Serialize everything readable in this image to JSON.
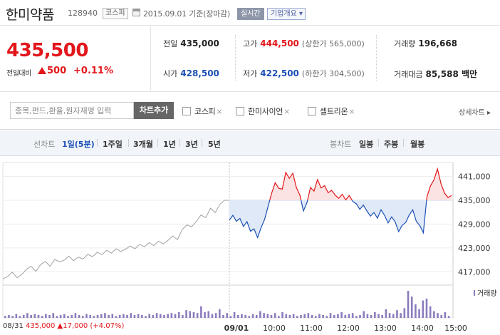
{
  "header": {
    "stock_name": "한미약품",
    "stock_code": "128940",
    "market": "코스피",
    "date": "2015.09.01 기준(장마감)",
    "realtime_label": "실시간",
    "company_label": "기업개요 ▾"
  },
  "price": {
    "current": "435,500",
    "change_label": "전일대비",
    "change": "500",
    "change_pct": "+0.11%"
  },
  "stats": {
    "prev_close": {
      "label": "전일",
      "value": "435,000"
    },
    "open": {
      "label": "시가",
      "value": "428,500"
    },
    "high": {
      "label": "고가",
      "value": "444,500",
      "sub": "(상한가 565,000)"
    },
    "low": {
      "label": "저가",
      "value": "422,500",
      "sub": "(하한가 304,500)"
    },
    "volume": {
      "label": "거래량",
      "value": "196,668"
    },
    "amount": {
      "label": "거래대금",
      "value": "85,588 백만"
    }
  },
  "search": {
    "placeholder": "종목,펀드,환율,원자재명 입력",
    "add_button": "차트추가",
    "compare": [
      {
        "label": "코스피"
      },
      {
        "label": "한미사이언"
      },
      {
        "label": "셀트리온"
      }
    ],
    "compare_remove": "×",
    "detail_link": "상세차트 ▸"
  },
  "periods": {
    "line_label": "선차트",
    "items": [
      "1일(5분)",
      "1주일",
      "3개월",
      "1년",
      "3년",
      "5년"
    ],
    "active": "1일(5분)",
    "candle_label": "봉차트",
    "candle_items": [
      "일봉",
      "주봉",
      "월봉"
    ]
  },
  "chart_data": {
    "type": "line",
    "y_ticks": [
      "441,000",
      "435,000",
      "429,000",
      "423,000",
      "417,000"
    ],
    "x_ticks": [
      "09/01",
      "10:00",
      "11:00",
      "12:00",
      "13:00",
      "14:00",
      "15:00"
    ],
    "prev_close": 435000,
    "ylim": [
      414000,
      444500
    ],
    "prev_day_label": "08/31",
    "prev_day_price": "435,000",
    "prev_day_change": "▲17,000",
    "prev_day_change_pct": "(+4.07%)",
    "volume_label": "거래량",
    "colors": {
      "up": "#e2161b",
      "down": "#1b4fb5",
      "prev": "#a0a0a0",
      "volume": "#8c7bbd"
    },
    "prev_day_series": [
      415200,
      415800,
      416900,
      415500,
      416300,
      417600,
      418400,
      417100,
      418800,
      419600,
      418400,
      420100,
      419500,
      419900,
      420900,
      419800,
      420700,
      420200,
      421400,
      420800,
      421900,
      421300,
      422400,
      421700,
      422800,
      422100,
      422700,
      423500,
      422800,
      423900,
      423300,
      424300,
      423600,
      424700,
      424000,
      424900,
      426000,
      425100,
      427600,
      428800,
      428300,
      429700,
      431300,
      430600,
      433000,
      431900,
      434000,
      435000,
      435000
    ],
    "today_series": [
      430000,
      431200,
      429700,
      430400,
      428400,
      429600,
      427200,
      427800,
      425600,
      428100,
      430200,
      433500,
      436800,
      439400,
      438000,
      437800,
      442000,
      440500,
      441800,
      438200,
      436300,
      432300,
      434400,
      438200,
      437300,
      440200,
      438100,
      438700,
      436900,
      437500,
      436300,
      435500,
      436500,
      435100,
      436200,
      434700,
      434100,
      432700,
      433800,
      432300,
      431000,
      431900,
      430500,
      432600,
      431200,
      429300,
      430800,
      429600,
      427100,
      428700,
      429400,
      431300,
      432600,
      429700,
      428600,
      426800,
      435800,
      438600,
      440100,
      442900,
      439200,
      436800,
      435700,
      436200
    ],
    "volume_series": [
      2,
      3,
      2,
      4,
      2,
      3,
      5,
      3,
      4,
      3,
      2,
      4,
      3,
      5,
      2,
      3,
      4,
      2,
      3,
      5,
      3,
      2,
      4,
      3,
      2,
      3,
      4,
      5,
      3,
      4,
      2,
      3,
      4,
      3,
      5,
      3,
      4,
      3,
      2,
      4,
      3,
      5,
      4,
      3,
      4,
      5,
      4,
      6,
      3,
      8,
      7,
      6,
      5,
      12,
      6,
      7,
      4,
      5,
      9,
      3,
      5,
      2,
      6,
      3,
      4,
      3,
      2,
      4,
      3,
      7,
      5,
      4,
      3,
      5,
      2,
      6,
      4,
      3,
      4,
      2,
      3,
      4,
      5,
      3,
      2,
      4,
      3,
      2,
      5,
      3,
      4,
      6,
      3,
      4,
      5,
      2,
      3,
      7,
      4,
      3,
      6,
      4,
      3,
      9,
      5,
      4,
      8,
      5,
      10,
      28,
      22,
      14,
      9,
      18,
      20,
      12,
      7,
      5,
      3,
      6,
      2
    ]
  }
}
